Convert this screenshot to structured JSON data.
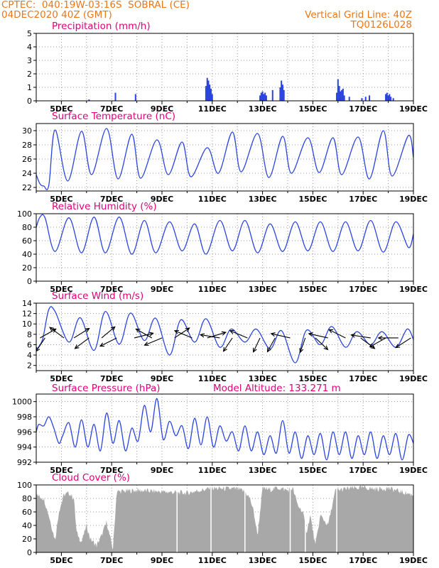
{
  "header": {
    "line1": "CPTEC:  040:19W-03:16S  SOBRAL (CE)",
    "line2": "04DEC2020 40Z (GMT)",
    "right1": "Vertical Grid Line: 40Z",
    "right2": "TQ0126L028"
  },
  "colors": {
    "header": "#e8771b",
    "title": "#e0007a",
    "line": "#2b44e0",
    "bar": "#2b44e0",
    "cloud": "#a8a8a8",
    "arrow": "#000000"
  },
  "chart_data": [
    {
      "type": "bar",
      "title": "Precipitation (mm/h)",
      "ylim": [
        0,
        5
      ],
      "yticks": [
        0,
        1,
        2,
        3,
        4,
        5
      ],
      "xlim": [
        4,
        19
      ],
      "xticks": [
        "5DEC",
        "7DEC",
        "9DEC",
        "11DEC",
        "13DEC",
        "15DEC",
        "17DEC",
        "19DEC"
      ],
      "x": [
        6.1,
        7.15,
        7.95,
        10.75,
        10.8,
        10.85,
        10.9,
        10.95,
        11.0,
        12.9,
        12.95,
        13.0,
        13.05,
        13.1,
        13.15,
        13.4,
        13.7,
        13.75,
        13.8,
        13.85,
        15.95,
        16.0,
        16.05,
        16.1,
        16.15,
        16.2,
        16.25,
        16.45,
        16.95,
        17.1,
        17.25,
        17.9,
        17.95,
        18.0,
        18.05,
        18.1,
        18.2
      ],
      "values": [
        0.1,
        0.6,
        0.5,
        1.1,
        1.7,
        1.5,
        1.2,
        0.9,
        0.5,
        0.4,
        0.6,
        0.7,
        0.5,
        0.6,
        0.4,
        0.8,
        1.0,
        1.5,
        1.2,
        0.8,
        0.6,
        1.6,
        1.1,
        0.7,
        0.8,
        0.9,
        0.4,
        0.3,
        0.2,
        0.3,
        0.4,
        0.5,
        0.6,
        0.4,
        0.5,
        0.3,
        0.2
      ]
    },
    {
      "type": "line",
      "title": "Surface Temperature (nC)",
      "ylim": [
        21.5,
        31
      ],
      "yticks": [
        22,
        24,
        26,
        28,
        30
      ],
      "xlim": [
        4,
        19
      ],
      "xticks": [
        "5DEC",
        "7DEC",
        "9DEC",
        "11DEC",
        "13DEC",
        "15DEC",
        "17DEC",
        "19DEC"
      ],
      "x": [
        4.0,
        4.15,
        4.3,
        4.5,
        4.75,
        5.25,
        5.8,
        6.2,
        6.8,
        7.25,
        7.8,
        8.15,
        8.8,
        9.25,
        9.8,
        10.15,
        10.8,
        11.25,
        11.8,
        12.15,
        12.8,
        13.25,
        13.8,
        14.15,
        14.8,
        15.25,
        15.8,
        16.15,
        16.8,
        17.25,
        17.8,
        18.15,
        18.8,
        19.0
      ],
      "series": [
        {
          "values": [
            23.8,
            22.5,
            22.2,
            22.3,
            30.1,
            22.9,
            29.9,
            23.8,
            30.3,
            23.2,
            29.5,
            23.3,
            28.7,
            23.8,
            28.4,
            23.5,
            27.6,
            24.0,
            29.8,
            24.2,
            29.6,
            23.4,
            29.2,
            24.0,
            29.0,
            24.1,
            29.0,
            23.8,
            29.1,
            23.2,
            30.0,
            23.6,
            29.3,
            26.2
          ]
        }
      ]
    },
    {
      "type": "line",
      "title": "Relative Humidity (%)",
      "ylim": [
        0,
        100
      ],
      "yticks": [
        0,
        20,
        40,
        60,
        80,
        100
      ],
      "xlim": [
        4,
        19
      ],
      "xticks": [
        "5DEC",
        "7DEC",
        "9DEC",
        "11DEC",
        "13DEC",
        "15DEC",
        "17DEC",
        "19DEC"
      ],
      "x": [
        4.0,
        4.15,
        4.35,
        4.75,
        5.3,
        5.8,
        6.3,
        6.75,
        7.3,
        7.8,
        8.3,
        8.75,
        9.3,
        9.8,
        10.3,
        10.75,
        11.3,
        11.8,
        12.3,
        12.8,
        13.3,
        13.8,
        14.3,
        14.8,
        15.3,
        15.8,
        16.3,
        16.8,
        17.3,
        17.8,
        18.3,
        18.8,
        19.0
      ],
      "series": [
        {
          "values": [
            80,
            95,
            94,
            44,
            94,
            42,
            95,
            42,
            95,
            40,
            90,
            42,
            88,
            45,
            85,
            40,
            90,
            45,
            90,
            42,
            85,
            44,
            88,
            45,
            88,
            44,
            88,
            45,
            90,
            43,
            88,
            50,
            70
          ]
        }
      ]
    },
    {
      "type": "line",
      "title": "Surface Wind (m/s)",
      "ylim": [
        1,
        14
      ],
      "yticks": [
        2,
        4,
        6,
        8,
        10,
        12,
        14
      ],
      "xlim": [
        4,
        19
      ],
      "xticks": [
        "5DEC",
        "7DEC",
        "9DEC",
        "11DEC",
        "13DEC",
        "15DEC",
        "17DEC",
        "19DEC"
      ],
      "x": [
        4.0,
        4.25,
        4.5,
        4.75,
        5.3,
        5.75,
        6.3,
        6.75,
        7.3,
        7.75,
        8.3,
        8.75,
        9.3,
        9.75,
        10.3,
        10.75,
        11.3,
        11.75,
        12.3,
        12.75,
        13.3,
        13.75,
        14.3,
        14.75,
        15.3,
        15.75,
        16.3,
        16.75,
        17.3,
        17.75,
        18.3,
        18.75,
        19.0
      ],
      "series": [
        {
          "values": [
            5.0,
            7.0,
            12.8,
            12.4,
            6.5,
            11.2,
            4.9,
            12.4,
            6.1,
            12.1,
            6.8,
            11.1,
            4.0,
            10.8,
            6.5,
            11.0,
            5.5,
            9.0,
            6.5,
            9.0,
            5.2,
            8.7,
            2.5,
            8.8,
            6.0,
            9.5,
            5.5,
            8.5,
            6.0,
            8.5,
            5.5,
            9.0,
            7.0
          ]
        }
      ],
      "arrows": [
        {
          "x": 4.15,
          "dx": 0.8,
          "dy": 0.6
        },
        {
          "x": 4.35,
          "dx": -0.6,
          "dy": -1.2
        },
        {
          "x": 5.1,
          "dx": -0.9,
          "dy": 0.9
        },
        {
          "x": 5.5,
          "dx": 0.6,
          "dy": 0.5
        },
        {
          "x": 6.1,
          "dx": -0.8,
          "dy": -0.8
        },
        {
          "x": 6.6,
          "dx": 0.9,
          "dy": 1.0
        },
        {
          "x": 7.2,
          "dx": -0.9,
          "dy": -0.6
        },
        {
          "x": 7.9,
          "dx": 0.9,
          "dy": 0.3
        },
        {
          "x": 8.6,
          "dx": -0.8,
          "dy": 0.6
        },
        {
          "x": 9.0,
          "dx": -0.9,
          "dy": -0.5
        },
        {
          "x": 9.5,
          "dx": 0.9,
          "dy": 0.8
        },
        {
          "x": 10.2,
          "dx": -0.9,
          "dy": 0.5
        },
        {
          "x": 10.8,
          "dx": 1.0,
          "dy": 0.4
        },
        {
          "x": 11.3,
          "dx": -0.9,
          "dy": 0.2
        },
        {
          "x": 11.8,
          "dx": -0.6,
          "dy": -1.2
        },
        {
          "x": 12.4,
          "dx": -0.9,
          "dy": 0.5
        },
        {
          "x": 12.9,
          "dx": -0.5,
          "dy": -1.4
        },
        {
          "x": 13.5,
          "dx": -0.5,
          "dy": -1.2
        },
        {
          "x": 14.1,
          "dx": -1.0,
          "dy": 0.3
        },
        {
          "x": 14.7,
          "dx": -0.4,
          "dy": -1.5
        },
        {
          "x": 15.1,
          "dx": 0.8,
          "dy": -1.0
        },
        {
          "x": 15.6,
          "dx": -1.0,
          "dy": 0.3
        },
        {
          "x": 16.3,
          "dx": -0.9,
          "dy": 0.6
        },
        {
          "x": 16.9,
          "dx": 0.8,
          "dy": -0.8
        },
        {
          "x": 17.3,
          "dx": -1.0,
          "dy": 0.2
        },
        {
          "x": 17.9,
          "dx": -0.8,
          "dy": -0.6
        },
        {
          "x": 18.4,
          "dx": -0.9,
          "dy": 0.0
        },
        {
          "x": 18.9,
          "dx": -0.7,
          "dy": -0.6
        }
      ]
    },
    {
      "type": "line",
      "title": "Surface Pressure (hPa)",
      "annotation": "Model Altitude: 133.271  m",
      "ylim": [
        992,
        1001
      ],
      "yticks": [
        992,
        994,
        996,
        998,
        1000
      ],
      "xlim": [
        4,
        19
      ],
      "xticks": [
        "5DEC",
        "7DEC",
        "9DEC",
        "11DEC",
        "13DEC",
        "15DEC",
        "17DEC",
        "19DEC"
      ],
      "x": [
        4.0,
        4.1,
        4.3,
        4.5,
        4.7,
        4.9,
        5.05,
        5.3,
        5.55,
        5.8,
        6.05,
        6.3,
        6.55,
        6.8,
        7.05,
        7.3,
        7.55,
        7.8,
        8.05,
        8.3,
        8.55,
        8.8,
        9.05,
        9.3,
        9.55,
        9.8,
        10.05,
        10.3,
        10.55,
        10.8,
        11.05,
        11.3,
        11.55,
        11.8,
        12.05,
        12.3,
        12.55,
        12.8,
        13.05,
        13.3,
        13.55,
        13.8,
        14.05,
        14.3,
        14.55,
        14.8,
        15.05,
        15.3,
        15.55,
        15.8,
        16.05,
        16.3,
        16.55,
        16.8,
        17.05,
        17.3,
        17.55,
        17.8,
        18.05,
        18.3,
        18.55,
        18.8,
        19.0
      ],
      "series": [
        {
          "values": [
            996.0,
            997.0,
            996.8,
            998.0,
            996.5,
            994.5,
            995.5,
            997.2,
            994.0,
            997.6,
            994.0,
            997.0,
            993.5,
            998.5,
            994.5,
            997.5,
            993.5,
            996.5,
            994.8,
            999.5,
            996.0,
            1000.4,
            995.0,
            997.4,
            995.5,
            996.8,
            993.8,
            997.8,
            994.3,
            998.0,
            994.0,
            996.8,
            994.8,
            996.0,
            993.5,
            996.8,
            993.5,
            996.0,
            993.0,
            995.5,
            993.2,
            997.5,
            993.2,
            996.0,
            992.5,
            995.5,
            993.0,
            995.8,
            992.3,
            996.0,
            993.0,
            996.0,
            992.5,
            995.5,
            993.0,
            996.0,
            992.5,
            995.5,
            993.0,
            995.8,
            992.3,
            995.6,
            994.5
          ]
        }
      ]
    },
    {
      "type": "bar",
      "title": "Cloud Cover (%)",
      "ylim": [
        0,
        100
      ],
      "yticks": [
        0,
        20,
        40,
        60,
        80,
        100
      ],
      "xlim": [
        4,
        19
      ],
      "xticks": [
        "5DEC",
        "7DEC",
        "9DEC",
        "11DEC",
        "13DEC",
        "15DEC",
        "17DEC",
        "19DEC"
      ],
      "profile_x": [
        4.0,
        4.3,
        4.5,
        4.75,
        4.9,
        5.1,
        5.3,
        5.5,
        5.6,
        5.8,
        6.0,
        6.15,
        6.4,
        6.6,
        6.8,
        6.95,
        7.05,
        7.2,
        8.0,
        9.0,
        10.0,
        10.5,
        11.0,
        12.0,
        12.3,
        12.5,
        12.65,
        12.8,
        13.0,
        13.3,
        13.6,
        14.0,
        14.2,
        14.4,
        14.6,
        14.75,
        14.9,
        15.1,
        15.3,
        15.6,
        15.9,
        16.5,
        17.0,
        17.5,
        18.0,
        18.5,
        19.0
      ],
      "profile_values": [
        85,
        80,
        55,
        18,
        60,
        85,
        88,
        80,
        30,
        15,
        40,
        20,
        10,
        25,
        45,
        20,
        5,
        90,
        92,
        90,
        88,
        92,
        95,
        94,
        90,
        80,
        60,
        25,
        95,
        93,
        96,
        92,
        95,
        70,
        60,
        30,
        55,
        10,
        55,
        40,
        92,
        95,
        96,
        94,
        95,
        90,
        85
      ],
      "gaps_x": [
        9.6,
        10.95,
        12.3,
        14.1,
        14.7,
        15.95
      ]
    }
  ]
}
